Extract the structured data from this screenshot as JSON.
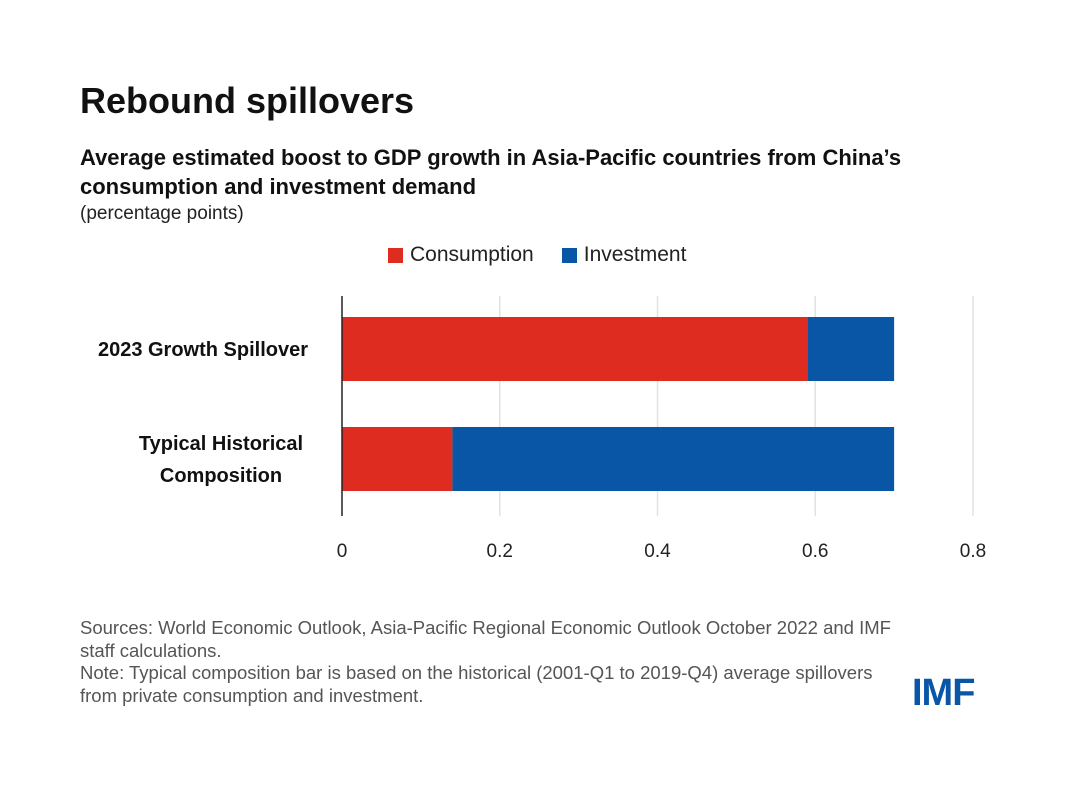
{
  "chart_data": {
    "type": "bar",
    "orientation": "horizontal",
    "stacked": true,
    "title": "Rebound spillovers",
    "subtitle": "Average estimated boost to GDP growth in Asia-Pacific countries from China’s consumption and investment demand",
    "units": "(percentage points)",
    "categories": [
      [
        "2023 Growth Spillover"
      ],
      [
        "Typical Historical",
        "Composition"
      ]
    ],
    "series": [
      {
        "name": "Consumption",
        "color": "#de2d20",
        "values": [
          0.59,
          0.14
        ]
      },
      {
        "name": "Investment",
        "color": "#0a56a6",
        "values": [
          0.11,
          0.56
        ]
      }
    ],
    "xlim": [
      0,
      0.8
    ],
    "xticks": [
      "0",
      "0.2",
      "0.4",
      "0.6",
      "0.8"
    ],
    "grid": true,
    "legend": "top"
  },
  "notes": {
    "sources": "Sources: World Economic Outlook, Asia-Pacific Regional Economic Outlook October 2022 and IMF staff calculations.",
    "note": "Note: Typical composition bar is based on the historical (2001-Q1 to 2019-Q4) average spillovers from private consumption and investment."
  },
  "logo": "IMF"
}
